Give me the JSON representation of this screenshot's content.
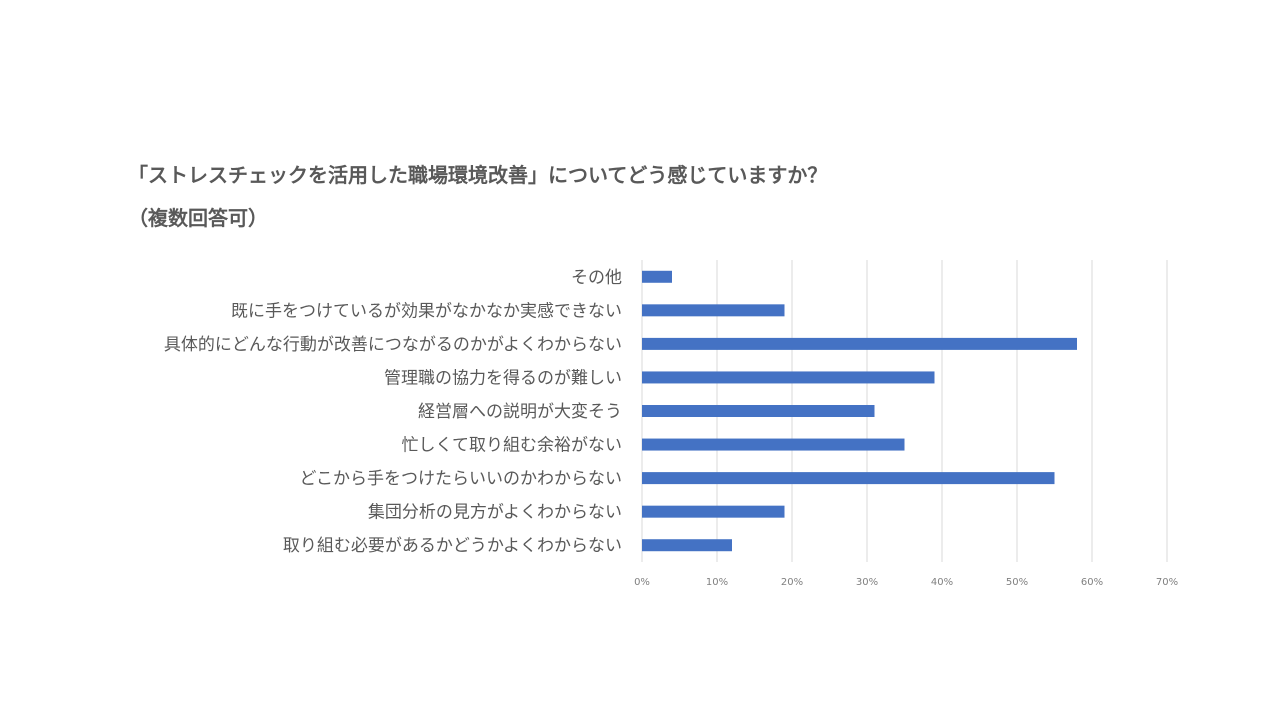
{
  "title_line1": "「ストレスチェックを活用した職場環境改善」についてどう感じていますか？",
  "title_line2": "（複数回答可）",
  "chart_data": {
    "type": "bar",
    "orientation": "horizontal",
    "categories": [
      "その他",
      "既に手をつけているが効果がなかなか実感できない",
      "具体的にどんな行動が改善につながるのかがよくわからない",
      "管理職の協力を得るのが難しい",
      "経営層への説明が大変そう",
      "忙しくて取り組む余裕がない",
      "どこから手をつけたらいいのかわからない",
      "集団分析の見方がよくわからない",
      "取り組む必要があるかどうかよくわからない"
    ],
    "values": [
      4,
      19,
      58,
      39,
      31,
      35,
      55,
      19,
      12
    ],
    "xlim": [
      0,
      70
    ],
    "ticks": [
      "0%",
      "10%",
      "20%",
      "30%",
      "40%",
      "50%",
      "60%",
      "70%"
    ],
    "grid": true,
    "bar_color": "#4472C4",
    "grid_color": "#D9D9D9"
  }
}
